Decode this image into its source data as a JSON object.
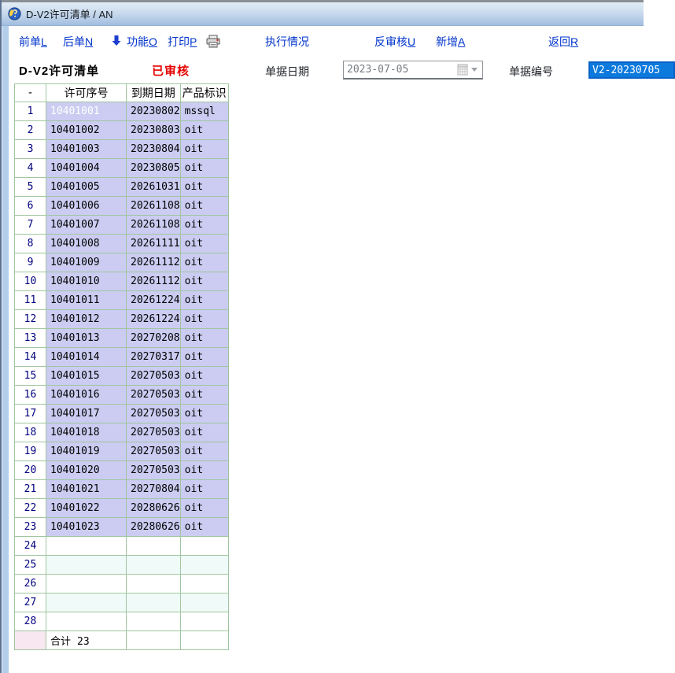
{
  "window": {
    "title": "D-V2许可清单 / AN"
  },
  "toolbar": {
    "items": [
      {
        "text": "前单",
        "accel": "L"
      },
      {
        "text": "后单",
        "accel": "N"
      },
      {
        "text": "功能",
        "accel": "O"
      },
      {
        "text": "打印",
        "accel": "P"
      },
      {
        "text": "执行情况",
        "accel": ""
      },
      {
        "text": "反审核",
        "accel": "U"
      },
      {
        "text": "新增",
        "accel": "A"
      },
      {
        "text": "返回",
        "accel": "R"
      }
    ]
  },
  "form": {
    "doc_title": "D-V2许可清单",
    "status": "已审核",
    "date_label": "单据日期",
    "date_value": "2023-07-05",
    "doc_no_label": "单据编号",
    "doc_no_value": "V2-20230705"
  },
  "colors": {
    "link_blue": "#0033cc",
    "status_red": "#e60000",
    "grid_border_green": "#9fc69f",
    "cell_lavender": "#ccccf2",
    "rownum_navy": "#000080",
    "corner_pink": "#f8e6f1",
    "empty_azure": "#f0fbf9",
    "selection_blue": "#0c79dd",
    "titlebar_blue": "#b5cbe6"
  },
  "table": {
    "columns": [
      {
        "key": "num",
        "label": "-"
      },
      {
        "key": "license_no",
        "label": "许可序号"
      },
      {
        "key": "expire_date",
        "label": "到期日期"
      },
      {
        "key": "product",
        "label": "产品标识"
      }
    ],
    "highlight": {
      "row_num": "1",
      "column": "license_no"
    },
    "rows": [
      {
        "num": "1",
        "license_no": "10401001",
        "expire_date": "20230802",
        "product": "mssql"
      },
      {
        "num": "2",
        "license_no": "10401002",
        "expire_date": "20230803",
        "product": "oit"
      },
      {
        "num": "3",
        "license_no": "10401003",
        "expire_date": "20230804",
        "product": "oit"
      },
      {
        "num": "4",
        "license_no": "10401004",
        "expire_date": "20230805",
        "product": "oit"
      },
      {
        "num": "5",
        "license_no": "10401005",
        "expire_date": "20261031",
        "product": "oit"
      },
      {
        "num": "6",
        "license_no": "10401006",
        "expire_date": "20261108",
        "product": "oit"
      },
      {
        "num": "7",
        "license_no": "10401007",
        "expire_date": "20261108",
        "product": "oit"
      },
      {
        "num": "8",
        "license_no": "10401008",
        "expire_date": "20261111",
        "product": "oit"
      },
      {
        "num": "9",
        "license_no": "10401009",
        "expire_date": "20261112",
        "product": "oit"
      },
      {
        "num": "10",
        "license_no": "10401010",
        "expire_date": "20261112",
        "product": "oit"
      },
      {
        "num": "11",
        "license_no": "10401011",
        "expire_date": "20261224",
        "product": "oit"
      },
      {
        "num": "12",
        "license_no": "10401012",
        "expire_date": "20261224",
        "product": "oit"
      },
      {
        "num": "13",
        "license_no": "10401013",
        "expire_date": "20270208",
        "product": "oit"
      },
      {
        "num": "14",
        "license_no": "10401014",
        "expire_date": "20270317",
        "product": "oit"
      },
      {
        "num": "15",
        "license_no": "10401015",
        "expire_date": "20270503",
        "product": "oit"
      },
      {
        "num": "16",
        "license_no": "10401016",
        "expire_date": "20270503",
        "product": "oit"
      },
      {
        "num": "17",
        "license_no": "10401017",
        "expire_date": "20270503",
        "product": "oit"
      },
      {
        "num": "18",
        "license_no": "10401018",
        "expire_date": "20270503",
        "product": "oit"
      },
      {
        "num": "19",
        "license_no": "10401019",
        "expire_date": "20270503",
        "product": "oit"
      },
      {
        "num": "20",
        "license_no": "10401020",
        "expire_date": "20270503",
        "product": "oit"
      },
      {
        "num": "21",
        "license_no": "10401021",
        "expire_date": "20270804",
        "product": "oit"
      },
      {
        "num": "22",
        "license_no": "10401022",
        "expire_date": "20280626",
        "product": "oit"
      },
      {
        "num": "23",
        "license_no": "10401023",
        "expire_date": "20280626",
        "product": "oit"
      },
      {
        "num": "24",
        "license_no": "",
        "expire_date": "",
        "product": ""
      },
      {
        "num": "25",
        "license_no": "",
        "expire_date": "",
        "product": ""
      },
      {
        "num": "26",
        "license_no": "",
        "expire_date": "",
        "product": ""
      },
      {
        "num": "27",
        "license_no": "",
        "expire_date": "",
        "product": ""
      },
      {
        "num": "28",
        "license_no": "",
        "expire_date": "",
        "product": ""
      }
    ],
    "footer": {
      "label": "合计",
      "total": "23"
    }
  }
}
